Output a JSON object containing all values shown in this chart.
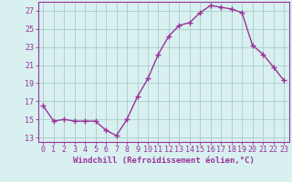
{
  "x": [
    0,
    1,
    2,
    3,
    4,
    5,
    6,
    7,
    8,
    9,
    10,
    11,
    12,
    13,
    14,
    15,
    16,
    17,
    18,
    19,
    20,
    21,
    22,
    23
  ],
  "y": [
    16.5,
    14.8,
    15.0,
    14.8,
    14.8,
    14.8,
    13.8,
    13.2,
    15.0,
    17.5,
    19.5,
    22.2,
    24.2,
    25.4,
    25.7,
    26.8,
    27.6,
    27.4,
    27.2,
    26.8,
    23.2,
    22.2,
    20.8,
    19.3
  ],
  "line_color": "#993399",
  "marker": "+",
  "markersize": 4,
  "linewidth": 1.0,
  "xlabel": "Windchill (Refroidissement éolien,°C)",
  "xlim": [
    -0.5,
    23.5
  ],
  "ylim": [
    12.5,
    28.0
  ],
  "yticks": [
    13,
    15,
    17,
    19,
    21,
    23,
    25,
    27
  ],
  "xtick_labels": [
    "0",
    "1",
    "2",
    "3",
    "4",
    "5",
    "6",
    "7",
    "8",
    "9",
    "10",
    "11",
    "12",
    "13",
    "14",
    "15",
    "16",
    "17",
    "18",
    "19",
    "20",
    "21",
    "22",
    "23"
  ],
  "bg_color": "#d8f0f0",
  "grid_color": "#aacccc",
  "xlabel_fontsize": 6.5,
  "tick_fontsize": 6,
  "xlabel_color": "#993399",
  "tick_color": "#993399",
  "spine_color": "#993399"
}
